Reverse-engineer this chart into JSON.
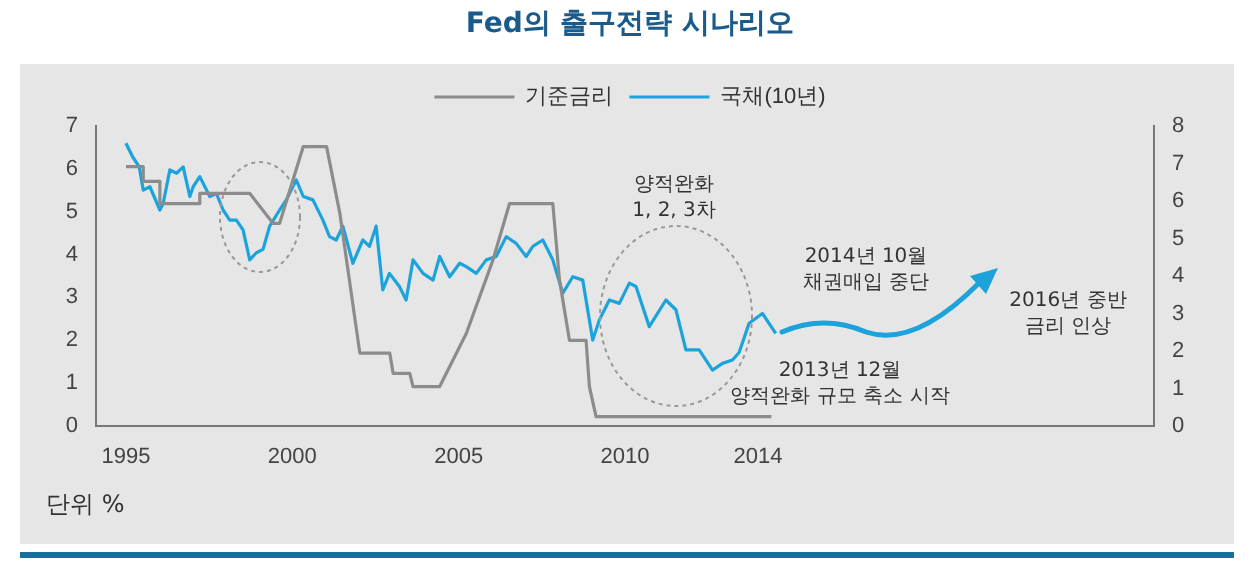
{
  "chart_data": {
    "type": "line",
    "title": "Fed의 출구전략 시나리오",
    "legend": "top",
    "xlim": [
      1994.1,
      2025.9
    ],
    "xticks": [
      1995,
      2000,
      2005,
      2010,
      2014
    ],
    "ylim": [
      0,
      7
    ],
    "yticks": [
      0,
      1,
      2,
      3,
      4,
      5,
      6,
      7
    ],
    "y2lim": [
      0,
      8
    ],
    "y2ticks": [
      0,
      1,
      2,
      3,
      4,
      5,
      6,
      7,
      8
    ],
    "series": [
      {
        "name": "기준금리",
        "color": "#8c8c8c",
        "x": [
          1995.0,
          1995.52,
          1995.52,
          1996.02,
          1996.02,
          1997.22,
          1997.22,
          1998.72,
          1999.42,
          1999.62,
          2000.33,
          2001.03,
          2001.43,
          2002.03,
          2002.93,
          2003.03,
          2003.53,
          2003.63,
          2004.43,
          2005.23,
          2006.03,
          2006.53,
          2007.83,
          2008.03,
          2008.33,
          2008.83,
          2008.93,
          2009.13,
          2014.4
        ],
        "values": [
          6.05,
          6.05,
          5.71,
          5.71,
          5.19,
          5.19,
          5.43,
          5.43,
          4.73,
          4.73,
          6.52,
          6.52,
          4.96,
          1.7,
          1.7,
          1.23,
          1.23,
          0.92,
          0.92,
          2.16,
          3.87,
          5.19,
          5.19,
          3.41,
          2.0,
          2.0,
          0.92,
          0.22,
          0.22
        ]
      },
      {
        "name": "국채(10년)",
        "color": "#1ca3dc",
        "axis": "y2",
        "x": [
          1995.0,
          1995.2,
          1995.4,
          1995.52,
          1995.72,
          1996.02,
          1996.12,
          1996.32,
          1996.52,
          1996.72,
          1996.92,
          1997.02,
          1997.22,
          1997.52,
          1997.72,
          1997.92,
          1998.12,
          1998.32,
          1998.52,
          1998.72,
          1998.92,
          1999.12,
          1999.32,
          1999.62,
          1999.82,
          2000.12,
          2000.33,
          2000.62,
          2000.92,
          2001.12,
          2001.32,
          2001.52,
          2001.82,
          2002.12,
          2002.32,
          2002.52,
          2002.72,
          2002.92,
          2003.22,
          2003.42,
          2003.63,
          2003.93,
          2004.23,
          2004.43,
          2004.73,
          2005.03,
          2005.23,
          2005.53,
          2005.83,
          2006.13,
          2006.43,
          2006.73,
          2007.03,
          2007.23,
          2007.53,
          2007.83,
          2008.13,
          2008.43,
          2008.73,
          2009.03,
          2009.23,
          2009.53,
          2009.83,
          2010.13,
          2010.33,
          2010.73,
          2011.23,
          2011.53,
          2011.83,
          2012.23,
          2012.63,
          2012.93,
          2013.23,
          2013.43,
          2013.73,
          2014.13,
          2014.53
        ],
        "values": [
          7.54,
          7.18,
          6.91,
          6.29,
          6.38,
          5.76,
          5.94,
          6.83,
          6.74,
          6.91,
          6.12,
          6.38,
          6.65,
          6.12,
          6.2,
          5.76,
          5.49,
          5.49,
          5.23,
          4.43,
          4.62,
          4.71,
          5.33,
          5.76,
          6.03,
          6.56,
          6.12,
          6.03,
          5.49,
          5.05,
          4.96,
          5.33,
          4.34,
          4.96,
          4.79,
          5.33,
          3.63,
          4.07,
          3.72,
          3.36,
          4.43,
          4.07,
          3.89,
          4.52,
          3.98,
          4.34,
          4.25,
          4.07,
          4.43,
          4.52,
          5.05,
          4.87,
          4.52,
          4.79,
          4.96,
          4.43,
          3.54,
          3.98,
          3.89,
          2.29,
          2.83,
          3.36,
          3.27,
          3.81,
          3.72,
          2.65,
          3.36,
          3.1,
          2.03,
          2.03,
          1.49,
          1.67,
          1.76,
          1.96,
          2.74,
          3.0,
          2.47
        ]
      }
    ],
    "annotations": [
      "양적완화\n1, 2, 3차",
      "2014년 10월\n채권매입 중단",
      "2016년 중반\n금리 인상",
      "2013년 12월\n양적완화 규모 축소 시작",
      "단위 %"
    ]
  }
}
